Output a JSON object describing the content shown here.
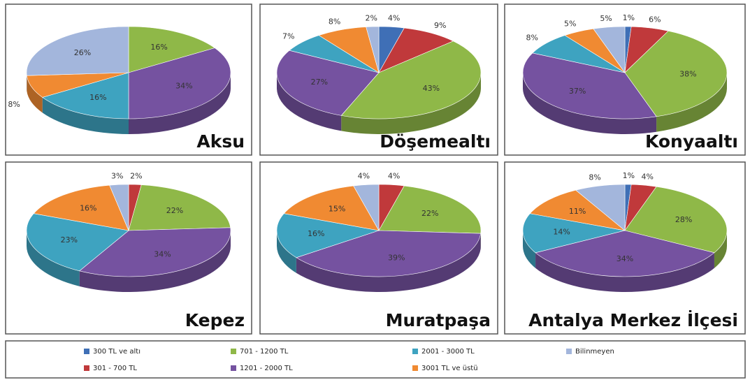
{
  "chart_data": [
    {
      "type": "pie",
      "title": "Aksu",
      "values": [
        null,
        null,
        16,
        34,
        16,
        8,
        26
      ],
      "value_labels": [
        null,
        null,
        "16%",
        "34%",
        "16%",
        "8%",
        "26%"
      ]
    },
    {
      "type": "pie",
      "title": "Döşemealtı",
      "values": [
        4,
        9,
        43,
        27,
        7,
        8,
        2
      ],
      "value_labels": [
        "4%",
        "9%",
        "43%",
        "27%",
        "7%",
        "8%",
        "2%"
      ]
    },
    {
      "type": "pie",
      "title": "Konyaaltı",
      "values": [
        1,
        6,
        38,
        37,
        8,
        5,
        5
      ],
      "value_labels": [
        "1%",
        "6%",
        "38%",
        "37%",
        "8%",
        "5%",
        "5%"
      ]
    },
    {
      "type": "pie",
      "title": "Kepez",
      "values": [
        null,
        2,
        22,
        34,
        23,
        16,
        3
      ],
      "value_labels": [
        null,
        "2%",
        "22%",
        "34%",
        "23%",
        "16%",
        "3%"
      ]
    },
    {
      "type": "pie",
      "title": "Muratpaşa",
      "values": [
        null,
        4,
        22,
        39,
        16,
        15,
        4
      ],
      "value_labels": [
        null,
        "4%",
        "22%",
        "39%",
        "16%",
        "15%",
        "4%"
      ]
    },
    {
      "type": "pie",
      "title": "Antalya Merkez İlçesi",
      "values": [
        1,
        4,
        28,
        34,
        14,
        11,
        8
      ],
      "value_labels": [
        "1%",
        "4%",
        "28%",
        "34%",
        "14%",
        "11%",
        "8%"
      ]
    }
  ],
  "legend": {
    "categories": [
      "300 TL ve altı",
      "301 - 700 TL",
      "701 - 1200 TL",
      "1201 - 2000 TL",
      "2001 - 3000 TL",
      "3001 TL ve üstü",
      "Bilinmeyen"
    ],
    "colors": [
      "#3f6fb6",
      "#c0393b",
      "#8fb848",
      "#7552a0",
      "#3ea3c0",
      "#f08a32",
      "#a3b6dc"
    ]
  }
}
